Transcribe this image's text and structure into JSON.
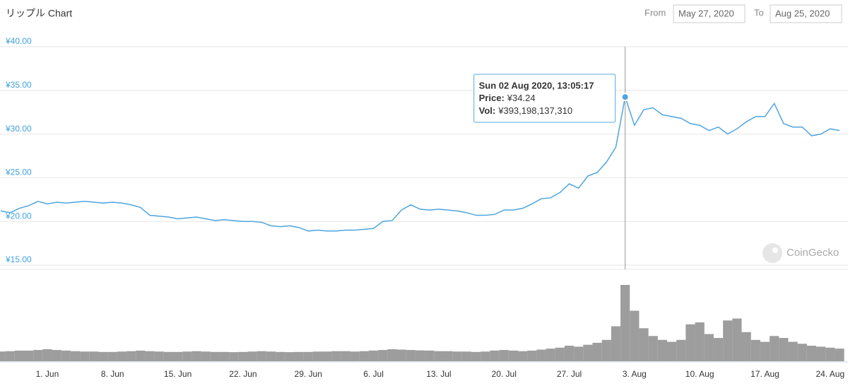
{
  "chart_data": {
    "type": "line",
    "title": "リップル Chart",
    "from_label": "From",
    "from_date": "May 27, 2020",
    "to_label": "To",
    "to_date": "Aug 25, 2020",
    "watermark": "CoinGecko",
    "color": "#4ea5e0",
    "volume_color": "#8c8c8c",
    "grid": true,
    "ylim": [
      15,
      40
    ],
    "yticks": [
      {
        "value": 15,
        "label": "¥15.00"
      },
      {
        "value": 20,
        "label": "¥20.00"
      },
      {
        "value": 25,
        "label": "¥25.00"
      },
      {
        "value": 30,
        "label": "¥30.00"
      },
      {
        "value": 35,
        "label": "¥35.00"
      },
      {
        "value": 40,
        "label": "¥40.00"
      }
    ],
    "categories": [
      null,
      null,
      null,
      null,
      null,
      "1. Jun",
      null,
      null,
      null,
      null,
      null,
      null,
      "8. Jun",
      null,
      null,
      null,
      null,
      null,
      null,
      "15. Jun",
      null,
      null,
      null,
      null,
      null,
      null,
      "22. Jun",
      null,
      null,
      null,
      null,
      null,
      null,
      "29. Jun",
      null,
      null,
      null,
      null,
      null,
      null,
      "6. Jul",
      null,
      null,
      null,
      null,
      null,
      null,
      "13. Jul",
      null,
      null,
      null,
      null,
      null,
      null,
      "20. Jul",
      null,
      null,
      null,
      null,
      null,
      null,
      "27. Jul",
      null,
      null,
      null,
      null,
      null,
      null,
      "3. Aug",
      null,
      null,
      null,
      null,
      null,
      null,
      "10. Aug",
      null,
      null,
      null,
      null,
      null,
      null,
      "17. Aug",
      null,
      null,
      null,
      null,
      null,
      null,
      "24. Aug",
      null
    ],
    "values": [
      21.2,
      21.0,
      21.5,
      21.8,
      22.3,
      22.0,
      22.2,
      22.1,
      22.2,
      22.3,
      22.2,
      22.1,
      22.2,
      22.1,
      21.9,
      21.6,
      20.7,
      20.6,
      20.5,
      20.3,
      20.4,
      20.5,
      20.3,
      20.1,
      20.2,
      20.1,
      20.0,
      20.0,
      19.9,
      19.5,
      19.4,
      19.5,
      19.3,
      18.9,
      19.0,
      18.9,
      18.9,
      19.0,
      19.0,
      19.1,
      19.2,
      20.0,
      20.1,
      21.3,
      21.9,
      21.4,
      21.3,
      21.4,
      21.3,
      21.2,
      21.0,
      20.7,
      20.7,
      20.8,
      21.3,
      21.3,
      21.5,
      22.0,
      22.6,
      22.7,
      23.3,
      24.3,
      23.8,
      25.2,
      25.6,
      26.8,
      28.5,
      34.24,
      31.0,
      32.8,
      33.0,
      32.2,
      32.0,
      31.8,
      31.2,
      31.0,
      30.4,
      30.8,
      30.0,
      30.6,
      31.4,
      32.0,
      32.0,
      33.5,
      31.2,
      30.8,
      30.8,
      29.8,
      30.0,
      30.6,
      30.4
    ],
    "volume": [
      50000000000.0,
      52000000000.0,
      55000000000.0,
      55000000000.0,
      58000000000.0,
      62000000000.0,
      58000000000.0,
      55000000000.0,
      52000000000.0,
      50000000000.0,
      50000000000.0,
      48000000000.0,
      48000000000.0,
      50000000000.0,
      52000000000.0,
      55000000000.0,
      52000000000.0,
      50000000000.0,
      48000000000.0,
      48000000000.0,
      50000000000.0,
      52000000000.0,
      50000000000.0,
      48000000000.0,
      48000000000.0,
      47000000000.0,
      48000000000.0,
      50000000000.0,
      52000000000.0,
      50000000000.0,
      48000000000.0,
      47000000000.0,
      48000000000.0,
      48000000000.0,
      50000000000.0,
      50000000000.0,
      52000000000.0,
      52000000000.0,
      50000000000.0,
      52000000000.0,
      55000000000.0,
      58000000000.0,
      62000000000.0,
      60000000000.0,
      58000000000.0,
      56000000000.0,
      55000000000.0,
      52000000000.0,
      52000000000.0,
      50000000000.0,
      50000000000.0,
      48000000000.0,
      50000000000.0,
      55000000000.0,
      58000000000.0,
      55000000000.0,
      52000000000.0,
      55000000000.0,
      60000000000.0,
      65000000000.0,
      70000000000.0,
      80000000000.0,
      75000000000.0,
      85000000000.0,
      95000000000.0,
      110000000000.0,
      180000000000.0,
      393000000000.0,
      260000000000.0,
      170000000000.0,
      130000000000.0,
      110000000000.0,
      100000000000.0,
      110000000000.0,
      190000000000.0,
      200000000000.0,
      140000000000.0,
      120000000000.0,
      210000000000.0,
      220000000000.0,
      150000000000.0,
      110000000000.0,
      100000000000.0,
      130000000000.0,
      120000000000.0,
      100000000000.0,
      90000000000.0,
      80000000000.0,
      75000000000.0,
      70000000000.0,
      65000000000.0
    ],
    "tooltip": {
      "index": 67,
      "title": "Sun 02 Aug 2020, 13:05:17",
      "rows": [
        {
          "label": "Price:",
          "value": "¥34.24"
        },
        {
          "label": "Vol:",
          "value": "¥393,198,137,310"
        }
      ]
    }
  }
}
